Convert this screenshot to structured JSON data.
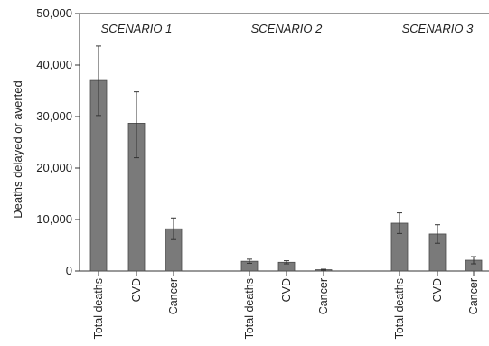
{
  "chart_data": {
    "type": "bar",
    "ylabel": "Deaths delayed or averted",
    "ylim": [
      0,
      50000
    ],
    "yticks": [
      0,
      10000,
      20000,
      30000,
      40000,
      50000
    ],
    "ytick_labels": [
      "0",
      "10,000",
      "20,000",
      "30,000",
      "40,000",
      "50,000"
    ],
    "bar_color": "#7a7a7a",
    "grid": false,
    "groups": [
      {
        "name": "SCENARIO 1",
        "bars": [
          {
            "category": "Total deaths",
            "value": 37000,
            "err_low": 30200,
            "err_high": 43700
          },
          {
            "category": "CVD",
            "value": 28700,
            "err_low": 22000,
            "err_high": 34800
          },
          {
            "category": "Cancer",
            "value": 8200,
            "err_low": 6100,
            "err_high": 10300
          }
        ]
      },
      {
        "name": "SCENARIO 2",
        "bars": [
          {
            "category": "Total deaths",
            "value": 1900,
            "err_low": 1500,
            "err_high": 2300
          },
          {
            "category": "CVD",
            "value": 1700,
            "err_low": 1400,
            "err_high": 2000
          },
          {
            "category": "Cancer",
            "value": 250,
            "err_low": 150,
            "err_high": 350
          }
        ]
      },
      {
        "name": "SCENARIO 3",
        "bars": [
          {
            "category": "Total deaths",
            "value": 9300,
            "err_low": 7300,
            "err_high": 11300
          },
          {
            "category": "CVD",
            "value": 7200,
            "err_low": 5400,
            "err_high": 9000
          },
          {
            "category": "Cancer",
            "value": 2100,
            "err_low": 1400,
            "err_high": 2800
          }
        ]
      }
    ]
  }
}
